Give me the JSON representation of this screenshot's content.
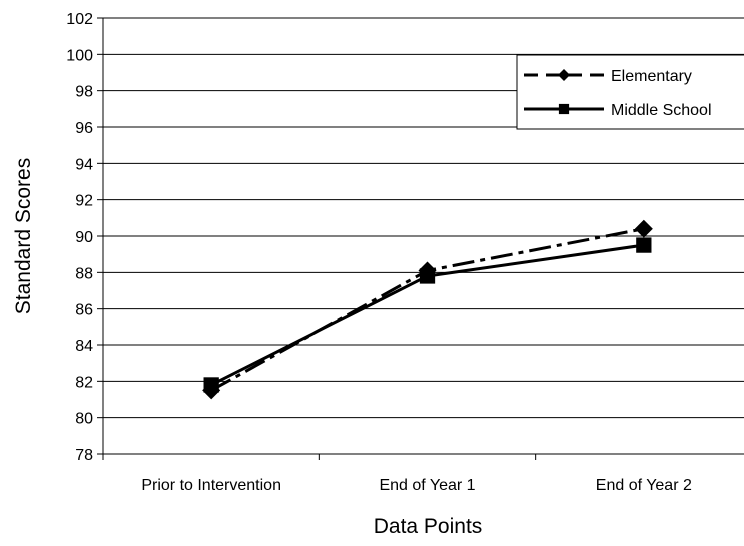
{
  "chart_data": {
    "type": "line",
    "title": "",
    "xlabel": "Data Points",
    "ylabel": "Standard Scores",
    "categories": [
      "Prior to Intervention",
      "End of Year 1",
      "End of Year 2"
    ],
    "ylim": [
      78,
      102
    ],
    "yticks": [
      78,
      80,
      82,
      84,
      86,
      88,
      90,
      92,
      94,
      96,
      98,
      100,
      102
    ],
    "grid": "horizontal",
    "legend_position": "top-right",
    "series": [
      {
        "name": "Elementary",
        "values": [
          81.5,
          88.1,
          90.4
        ],
        "line_style": "dashed",
        "marker": "diamond",
        "color": "#000000"
      },
      {
        "name": "Middle School",
        "values": [
          81.8,
          87.8,
          89.5
        ],
        "line_style": "solid",
        "marker": "square",
        "color": "#000000"
      }
    ]
  }
}
